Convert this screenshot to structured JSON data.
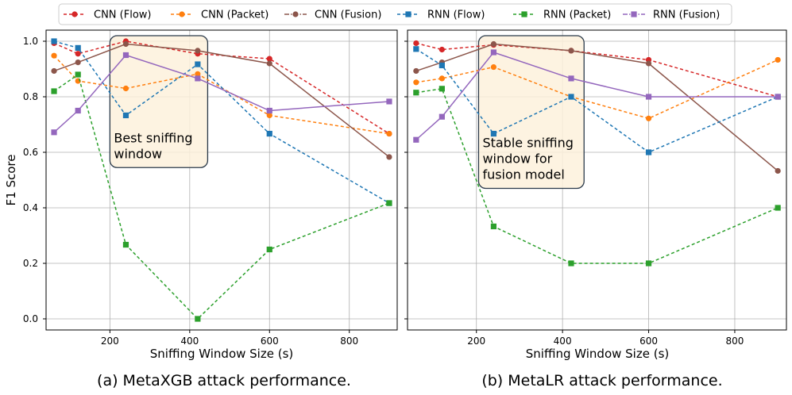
{
  "legend": [
    {
      "name": "CNN (Flow)",
      "color": "#d62728",
      "marker": "circle",
      "dash": "dashed"
    },
    {
      "name": "CNN (Packet)",
      "color": "#ff7f0e",
      "marker": "circle",
      "dash": "dashed"
    },
    {
      "name": "CNN (Fusion)",
      "color": "#8c564b",
      "marker": "circle",
      "dash": "solid"
    },
    {
      "name": "RNN (Flow)",
      "color": "#1f77b4",
      "marker": "square",
      "dash": "dashed"
    },
    {
      "name": "RNN (Packet)",
      "color": "#2ca02c",
      "marker": "square",
      "dash": "dashed"
    },
    {
      "name": "RNN (Fusion)",
      "color": "#9467bd",
      "marker": "square",
      "dash": "solid"
    }
  ],
  "chart_data": [
    {
      "type": "line",
      "caption": "(a) MetaXGB attack performance.",
      "xlabel": "Sniffing Window Size (s)",
      "ylabel": "F1 Score",
      "xlim": [
        40,
        920
      ],
      "ylim": [
        -0.04,
        1.04
      ],
      "xticks": [
        200,
        400,
        600,
        800
      ],
      "yticks": [
        0.0,
        0.2,
        0.4,
        0.6,
        0.8,
        1.0
      ],
      "x": [
        60,
        120,
        240,
        420,
        600,
        900
      ],
      "series": [
        {
          "name": "CNN (Flow)",
          "values": [
            0.993,
            0.955,
            1.0,
            0.955,
            0.937,
            0.667
          ]
        },
        {
          "name": "CNN (Packet)",
          "values": [
            0.948,
            0.857,
            0.83,
            0.882,
            0.733,
            0.667
          ]
        },
        {
          "name": "CNN (Fusion)",
          "values": [
            0.893,
            0.924,
            0.99,
            0.966,
            0.92,
            0.583
          ]
        },
        {
          "name": "RNN (Flow)",
          "values": [
            1.0,
            0.976,
            0.733,
            0.917,
            0.667,
            0.417
          ]
        },
        {
          "name": "RNN (Packet)",
          "values": [
            0.82,
            0.88,
            0.267,
            0.0,
            0.25,
            0.417
          ]
        },
        {
          "name": "RNN (Fusion)",
          "values": [
            0.672,
            0.75,
            0.95,
            0.866,
            0.75,
            0.783
          ]
        }
      ],
      "highlight": {
        "x_range": [
          200,
          445
        ],
        "y_range": [
          0.545,
          1.02
        ],
        "text": [
          "Best sniffing",
          "window"
        ]
      }
    },
    {
      "type": "line",
      "caption": "(b) MetaLR attack performance.",
      "xlabel": "Sniffing Window Size (s)",
      "ylabel": "",
      "xlim": [
        40,
        920
      ],
      "ylim": [
        -0.04,
        1.04
      ],
      "xticks": [
        200,
        400,
        600,
        800
      ],
      "yticks": [
        0.0,
        0.2,
        0.4,
        0.6,
        0.8,
        1.0
      ],
      "x": [
        60,
        120,
        240,
        420,
        600,
        900
      ],
      "series": [
        {
          "name": "CNN (Flow)",
          "values": [
            0.993,
            0.97,
            0.987,
            0.966,
            0.933,
            0.8
          ]
        },
        {
          "name": "CNN (Packet)",
          "values": [
            0.852,
            0.866,
            0.907,
            0.8,
            0.722,
            0.933
          ]
        },
        {
          "name": "CNN (Fusion)",
          "values": [
            0.893,
            0.924,
            0.99,
            0.966,
            0.92,
            0.533
          ]
        },
        {
          "name": "RNN (Flow)",
          "values": [
            0.972,
            0.913,
            0.667,
            0.8,
            0.6,
            0.8
          ]
        },
        {
          "name": "RNN (Packet)",
          "values": [
            0.815,
            0.829,
            0.333,
            0.2,
            0.2,
            0.4
          ]
        },
        {
          "name": "RNN (Fusion)",
          "values": [
            0.645,
            0.728,
            0.96,
            0.866,
            0.8,
            0.8
          ]
        }
      ],
      "highlight": {
        "x_range": [
          205,
          450
        ],
        "y_range": [
          0.47,
          1.02
        ],
        "text": [
          "Stable sniffing",
          "window for",
          "fusion model"
        ]
      }
    }
  ]
}
